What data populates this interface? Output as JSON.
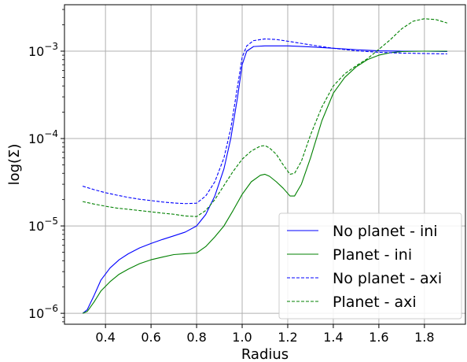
{
  "chart_data": {
    "type": "line",
    "xlabel": "Radius",
    "ylabel": "log(Σ)",
    "xlim": [
      0.22,
      1.98
    ],
    "ylim": [
      7.5e-07,
      0.0034
    ],
    "yscale": "log",
    "grid": true,
    "legend_position": "lower-right",
    "x_ticks": [
      {
        "value": 0.4,
        "label": "0.4"
      },
      {
        "value": 0.6,
        "label": "0.6"
      },
      {
        "value": 0.8,
        "label": "0.8"
      },
      {
        "value": 1.0,
        "label": "1.0"
      },
      {
        "value": 1.2,
        "label": "1.2"
      },
      {
        "value": 1.4,
        "label": "1.4"
      },
      {
        "value": 1.6,
        "label": "1.6"
      },
      {
        "value": 1.8,
        "label": "1.8"
      }
    ],
    "y_ticks": [
      {
        "value": 1e-06,
        "base": "10",
        "exp": "−6"
      },
      {
        "value": 1e-05,
        "base": "10",
        "exp": "−5"
      },
      {
        "value": 0.0001,
        "base": "10",
        "exp": "−4"
      },
      {
        "value": 0.001,
        "base": "10",
        "exp": "−3"
      }
    ],
    "series": [
      {
        "name": "No planet - ini",
        "color": "#0000ff",
        "dash": "solid",
        "points": [
          [
            0.3,
            1e-06
          ],
          [
            0.32,
            1.1e-06
          ],
          [
            0.35,
            1.6e-06
          ],
          [
            0.38,
            2.4e-06
          ],
          [
            0.42,
            3.3e-06
          ],
          [
            0.46,
            4.1e-06
          ],
          [
            0.5,
            4.8e-06
          ],
          [
            0.55,
            5.6e-06
          ],
          [
            0.6,
            6.3e-06
          ],
          [
            0.65,
            7e-06
          ],
          [
            0.7,
            7.7e-06
          ],
          [
            0.75,
            8.5e-06
          ],
          [
            0.8,
            1e-05
          ],
          [
            0.84,
            1.35e-05
          ],
          [
            0.88,
            2.2e-05
          ],
          [
            0.92,
            4.5e-05
          ],
          [
            0.95,
            0.0001
          ],
          [
            0.98,
            0.0003
          ],
          [
            1.0,
            0.0007
          ],
          [
            1.02,
            0.001
          ],
          [
            1.05,
            0.00113
          ],
          [
            1.1,
            0.00115
          ],
          [
            1.2,
            0.00115
          ],
          [
            1.3,
            0.00112
          ],
          [
            1.4,
            0.00108
          ],
          [
            1.5,
            0.00104
          ],
          [
            1.6,
            0.00101
          ],
          [
            1.7,
            0.001
          ],
          [
            1.8,
            0.001
          ],
          [
            1.9,
            0.00099
          ]
        ]
      },
      {
        "name": "Planet - ini",
        "color": "#008000",
        "dash": "solid",
        "points": [
          [
            0.3,
            1e-06
          ],
          [
            0.32,
            1.05e-06
          ],
          [
            0.35,
            1.35e-06
          ],
          [
            0.38,
            1.8e-06
          ],
          [
            0.42,
            2.3e-06
          ],
          [
            0.46,
            2.8e-06
          ],
          [
            0.5,
            3.2e-06
          ],
          [
            0.55,
            3.7e-06
          ],
          [
            0.6,
            4.1e-06
          ],
          [
            0.65,
            4.4e-06
          ],
          [
            0.7,
            4.7e-06
          ],
          [
            0.75,
            4.8e-06
          ],
          [
            0.8,
            4.9e-06
          ],
          [
            0.84,
            5.8e-06
          ],
          [
            0.88,
            7.5e-06
          ],
          [
            0.92,
            1e-05
          ],
          [
            0.96,
            1.5e-05
          ],
          [
            1.0,
            2.3e-05
          ],
          [
            1.04,
            3.2e-05
          ],
          [
            1.08,
            3.8e-05
          ],
          [
            1.1,
            3.9e-05
          ],
          [
            1.12,
            3.7e-05
          ],
          [
            1.15,
            3.2e-05
          ],
          [
            1.18,
            2.7e-05
          ],
          [
            1.21,
            2.2e-05
          ],
          [
            1.23,
            2.2e-05
          ],
          [
            1.26,
            3e-05
          ],
          [
            1.3,
            6e-05
          ],
          [
            1.35,
            0.00016
          ],
          [
            1.4,
            0.00033
          ],
          [
            1.45,
            0.0005
          ],
          [
            1.5,
            0.00066
          ],
          [
            1.55,
            0.0008
          ],
          [
            1.6,
            0.0009
          ],
          [
            1.65,
            0.00096
          ],
          [
            1.7,
            0.00099
          ],
          [
            1.8,
            0.001
          ],
          [
            1.9,
            0.001
          ]
        ]
      },
      {
        "name": "No planet - axi",
        "color": "#0000ff",
        "dash": "dashed",
        "points": [
          [
            0.3,
            2.85e-05
          ],
          [
            0.35,
            2.6e-05
          ],
          [
            0.4,
            2.4e-05
          ],
          [
            0.45,
            2.25e-05
          ],
          [
            0.5,
            2.12e-05
          ],
          [
            0.55,
            2.02e-05
          ],
          [
            0.6,
            1.95e-05
          ],
          [
            0.65,
            1.88e-05
          ],
          [
            0.7,
            1.83e-05
          ],
          [
            0.75,
            1.8e-05
          ],
          [
            0.8,
            1.82e-05
          ],
          [
            0.84,
            2.2e-05
          ],
          [
            0.88,
            3.2e-05
          ],
          [
            0.92,
            6e-05
          ],
          [
            0.95,
            0.00013
          ],
          [
            0.98,
            0.0004
          ],
          [
            1.0,
            0.00085
          ],
          [
            1.02,
            0.00115
          ],
          [
            1.05,
            0.00132
          ],
          [
            1.1,
            0.00138
          ],
          [
            1.15,
            0.00136
          ],
          [
            1.2,
            0.0013
          ],
          [
            1.3,
            0.00118
          ],
          [
            1.4,
            0.00108
          ],
          [
            1.5,
            0.00101
          ],
          [
            1.6,
            0.00097
          ],
          [
            1.7,
            0.00095
          ],
          [
            1.8,
            0.00094
          ],
          [
            1.9,
            0.00093
          ]
        ]
      },
      {
        "name": "Planet - axi",
        "color": "#008000",
        "dash": "dashed",
        "points": [
          [
            0.3,
            1.9e-05
          ],
          [
            0.35,
            1.78e-05
          ],
          [
            0.4,
            1.68e-05
          ],
          [
            0.45,
            1.6e-05
          ],
          [
            0.5,
            1.55e-05
          ],
          [
            0.55,
            1.5e-05
          ],
          [
            0.6,
            1.45e-05
          ],
          [
            0.65,
            1.4e-05
          ],
          [
            0.7,
            1.36e-05
          ],
          [
            0.75,
            1.3e-05
          ],
          [
            0.8,
            1.28e-05
          ],
          [
            0.84,
            1.5e-05
          ],
          [
            0.88,
            2e-05
          ],
          [
            0.92,
            2.9e-05
          ],
          [
            0.96,
            4.2e-05
          ],
          [
            1.0,
            5.8e-05
          ],
          [
            1.04,
            7.2e-05
          ],
          [
            1.08,
            8.2e-05
          ],
          [
            1.1,
            8.3e-05
          ],
          [
            1.12,
            7.8e-05
          ],
          [
            1.15,
            6.6e-05
          ],
          [
            1.18,
            5e-05
          ],
          [
            1.21,
            3.9e-05
          ],
          [
            1.23,
            4e-05
          ],
          [
            1.26,
            5.5e-05
          ],
          [
            1.3,
            0.00011
          ],
          [
            1.35,
            0.00023
          ],
          [
            1.4,
            0.0004
          ],
          [
            1.45,
            0.00055
          ],
          [
            1.5,
            0.00068
          ],
          [
            1.55,
            0.00082
          ],
          [
            1.6,
            0.00105
          ],
          [
            1.65,
            0.00135
          ],
          [
            1.7,
            0.0018
          ],
          [
            1.75,
            0.0022
          ],
          [
            1.8,
            0.00235
          ],
          [
            1.85,
            0.0023
          ],
          [
            1.9,
            0.0021
          ]
        ]
      }
    ]
  }
}
